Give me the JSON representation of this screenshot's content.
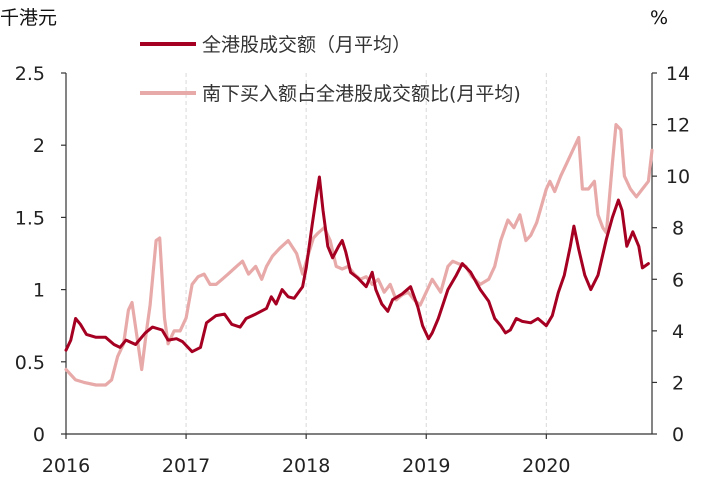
{
  "chart_data": {
    "type": "line",
    "y_left_unit": "千港元",
    "y_right_unit": "%",
    "x_ticks": [
      "2016",
      "2017",
      "2018",
      "2019",
      "2020"
    ],
    "y_left_ticks": [
      "0",
      "0.5",
      "1",
      "1.5",
      "2",
      "2.5"
    ],
    "y_right_ticks": [
      "0",
      "2",
      "4",
      "6",
      "8",
      "10",
      "12",
      "14"
    ],
    "xlim": [
      2016.0,
      2020.88
    ],
    "ylim_left": [
      0,
      2.5
    ],
    "ylim_right": [
      0,
      14
    ],
    "grid": "vertical dashed",
    "legend_position": "top-center",
    "series": [
      {
        "name": "全港股成交额（月平均）",
        "axis": "left",
        "color": "#a50021",
        "points": [
          [
            2016.0,
            0.58
          ],
          [
            2016.04,
            0.65
          ],
          [
            2016.08,
            0.8
          ],
          [
            2016.12,
            0.76
          ],
          [
            2016.17,
            0.69
          ],
          [
            2016.25,
            0.67
          ],
          [
            2016.33,
            0.67
          ],
          [
            2016.4,
            0.62
          ],
          [
            2016.45,
            0.6
          ],
          [
            2016.5,
            0.65
          ],
          [
            2016.58,
            0.62
          ],
          [
            2016.66,
            0.7
          ],
          [
            2016.72,
            0.74
          ],
          [
            2016.8,
            0.72
          ],
          [
            2016.85,
            0.65
          ],
          [
            2016.92,
            0.66
          ],
          [
            2016.97,
            0.64
          ],
          [
            2017.05,
            0.57
          ],
          [
            2017.12,
            0.6
          ],
          [
            2017.17,
            0.77
          ],
          [
            2017.25,
            0.82
          ],
          [
            2017.32,
            0.83
          ],
          [
            2017.38,
            0.76
          ],
          [
            2017.45,
            0.74
          ],
          [
            2017.5,
            0.8
          ],
          [
            2017.58,
            0.83
          ],
          [
            2017.67,
            0.87
          ],
          [
            2017.71,
            0.95
          ],
          [
            2017.75,
            0.9
          ],
          [
            2017.8,
            1.0
          ],
          [
            2017.85,
            0.95
          ],
          [
            2017.9,
            0.94
          ],
          [
            2017.97,
            1.02
          ],
          [
            2018.0,
            1.15
          ],
          [
            2018.05,
            1.45
          ],
          [
            2018.08,
            1.62
          ],
          [
            2018.11,
            1.78
          ],
          [
            2018.14,
            1.55
          ],
          [
            2018.18,
            1.3
          ],
          [
            2018.22,
            1.22
          ],
          [
            2018.27,
            1.3
          ],
          [
            2018.3,
            1.34
          ],
          [
            2018.33,
            1.26
          ],
          [
            2018.37,
            1.12
          ],
          [
            2018.43,
            1.08
          ],
          [
            2018.5,
            1.02
          ],
          [
            2018.55,
            1.12
          ],
          [
            2018.58,
            1.0
          ],
          [
            2018.63,
            0.9
          ],
          [
            2018.68,
            0.85
          ],
          [
            2018.72,
            0.93
          ],
          [
            2018.8,
            0.97
          ],
          [
            2018.87,
            1.02
          ],
          [
            2018.93,
            0.88
          ],
          [
            2018.97,
            0.75
          ],
          [
            2019.02,
            0.66
          ],
          [
            2019.05,
            0.7
          ],
          [
            2019.1,
            0.8
          ],
          [
            2019.18,
            1.0
          ],
          [
            2019.25,
            1.1
          ],
          [
            2019.3,
            1.18
          ],
          [
            2019.37,
            1.12
          ],
          [
            2019.45,
            1.0
          ],
          [
            2019.52,
            0.92
          ],
          [
            2019.57,
            0.8
          ],
          [
            2019.62,
            0.75
          ],
          [
            2019.66,
            0.7
          ],
          [
            2019.7,
            0.72
          ],
          [
            2019.75,
            0.8
          ],
          [
            2019.8,
            0.78
          ],
          [
            2019.87,
            0.77
          ],
          [
            2019.93,
            0.8
          ],
          [
            2020.0,
            0.75
          ],
          [
            2020.05,
            0.82
          ],
          [
            2020.1,
            0.98
          ],
          [
            2020.15,
            1.1
          ],
          [
            2020.2,
            1.3
          ],
          [
            2020.23,
            1.44
          ],
          [
            2020.27,
            1.28
          ],
          [
            2020.32,
            1.1
          ],
          [
            2020.37,
            1.0
          ],
          [
            2020.43,
            1.1
          ],
          [
            2020.5,
            1.35
          ],
          [
            2020.55,
            1.5
          ],
          [
            2020.6,
            1.62
          ],
          [
            2020.63,
            1.55
          ],
          [
            2020.67,
            1.3
          ],
          [
            2020.72,
            1.4
          ],
          [
            2020.77,
            1.3
          ],
          [
            2020.8,
            1.15
          ],
          [
            2020.85,
            1.18
          ]
        ]
      },
      {
        "name": "南下买入额占全港股成交额比(月平均)",
        "axis": "right",
        "color": "#e8a9a9",
        "points": [
          [
            2016.0,
            2.5
          ],
          [
            2016.08,
            2.1
          ],
          [
            2016.15,
            2.0
          ],
          [
            2016.25,
            1.9
          ],
          [
            2016.33,
            1.9
          ],
          [
            2016.38,
            2.1
          ],
          [
            2016.43,
            3.0
          ],
          [
            2016.48,
            3.5
          ],
          [
            2016.52,
            4.8
          ],
          [
            2016.55,
            5.1
          ],
          [
            2016.6,
            3.5
          ],
          [
            2016.63,
            2.5
          ],
          [
            2016.67,
            4.0
          ],
          [
            2016.7,
            5.0
          ],
          [
            2016.75,
            7.5
          ],
          [
            2016.78,
            7.6
          ],
          [
            2016.82,
            4.5
          ],
          [
            2016.85,
            3.5
          ],
          [
            2016.9,
            4.0
          ],
          [
            2016.95,
            4.0
          ],
          [
            2017.0,
            4.5
          ],
          [
            2017.05,
            5.8
          ],
          [
            2017.1,
            6.1
          ],
          [
            2017.15,
            6.2
          ],
          [
            2017.2,
            5.8
          ],
          [
            2017.25,
            5.8
          ],
          [
            2017.3,
            6.0
          ],
          [
            2017.35,
            6.2
          ],
          [
            2017.42,
            6.5
          ],
          [
            2017.47,
            6.7
          ],
          [
            2017.52,
            6.2
          ],
          [
            2017.58,
            6.5
          ],
          [
            2017.63,
            6.0
          ],
          [
            2017.67,
            6.5
          ],
          [
            2017.72,
            6.9
          ],
          [
            2017.78,
            7.2
          ],
          [
            2017.85,
            7.5
          ],
          [
            2017.92,
            7.0
          ],
          [
            2017.97,
            6.2
          ],
          [
            2018.02,
            7.0
          ],
          [
            2018.06,
            7.6
          ],
          [
            2018.1,
            7.8
          ],
          [
            2018.15,
            8.0
          ],
          [
            2018.2,
            7.5
          ],
          [
            2018.25,
            6.5
          ],
          [
            2018.3,
            6.4
          ],
          [
            2018.35,
            6.5
          ],
          [
            2018.4,
            6.2
          ],
          [
            2018.45,
            6.0
          ],
          [
            2018.5,
            6.1
          ],
          [
            2018.55,
            5.8
          ],
          [
            2018.6,
            6.0
          ],
          [
            2018.65,
            5.5
          ],
          [
            2018.7,
            5.8
          ],
          [
            2018.75,
            5.2
          ],
          [
            2018.8,
            5.4
          ],
          [
            2018.85,
            5.5
          ],
          [
            2018.9,
            5.2
          ],
          [
            2018.95,
            5.0
          ],
          [
            2019.0,
            5.5
          ],
          [
            2019.05,
            6.0
          ],
          [
            2019.12,
            5.5
          ],
          [
            2019.18,
            6.5
          ],
          [
            2019.22,
            6.7
          ],
          [
            2019.27,
            6.6
          ],
          [
            2019.33,
            6.5
          ],
          [
            2019.38,
            6.1
          ],
          [
            2019.45,
            5.8
          ],
          [
            2019.52,
            6.0
          ],
          [
            2019.57,
            6.5
          ],
          [
            2019.62,
            7.5
          ],
          [
            2019.68,
            8.3
          ],
          [
            2019.73,
            8.0
          ],
          [
            2019.78,
            8.5
          ],
          [
            2019.83,
            7.5
          ],
          [
            2019.87,
            7.7
          ],
          [
            2019.92,
            8.2
          ],
          [
            2020.0,
            9.5
          ],
          [
            2020.03,
            9.8
          ],
          [
            2020.07,
            9.4
          ],
          [
            2020.12,
            10.0
          ],
          [
            2020.17,
            10.5
          ],
          [
            2020.22,
            11.0
          ],
          [
            2020.27,
            11.5
          ],
          [
            2020.3,
            9.5
          ],
          [
            2020.35,
            9.5
          ],
          [
            2020.4,
            9.8
          ],
          [
            2020.43,
            8.5
          ],
          [
            2020.47,
            8.0
          ],
          [
            2020.5,
            7.8
          ],
          [
            2020.55,
            10.5
          ],
          [
            2020.58,
            12.0
          ],
          [
            2020.62,
            11.8
          ],
          [
            2020.65,
            10.0
          ],
          [
            2020.7,
            9.5
          ],
          [
            2020.75,
            9.2
          ],
          [
            2020.8,
            9.5
          ],
          [
            2020.85,
            9.8
          ],
          [
            2020.88,
            11.0
          ]
        ]
      }
    ]
  }
}
